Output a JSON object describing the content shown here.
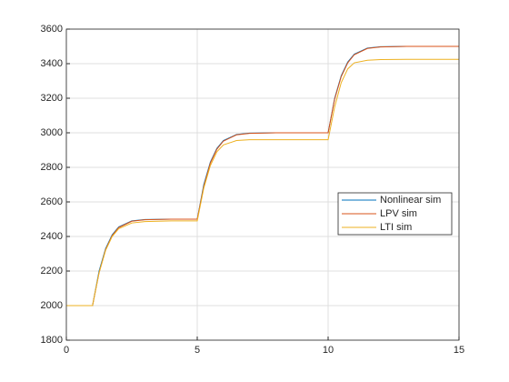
{
  "chart_data": {
    "type": "line",
    "x": [
      0,
      1,
      1.25,
      1.5,
      1.75,
      2,
      2.5,
      3,
      4,
      5,
      5.25,
      5.5,
      5.75,
      6,
      6.5,
      7,
      8,
      10,
      10.25,
      10.5,
      10.75,
      11,
      11.5,
      12,
      13,
      15
    ],
    "series": [
      {
        "name": "Nonlinear sim",
        "color": "#0072bd",
        "values": [
          2000,
          2000,
          2200,
          2330,
          2410,
          2455,
          2490,
          2498,
          2500,
          2500,
          2700,
          2830,
          2910,
          2955,
          2990,
          2998,
          3000,
          3000,
          3200,
          3330,
          3410,
          3455,
          3490,
          3498,
          3500,
          3500
        ]
      },
      {
        "name": "LPV sim",
        "color": "#d95319",
        "values": [
          2000,
          2000,
          2190,
          2325,
          2405,
          2452,
          2488,
          2497,
          2500,
          2500,
          2690,
          2825,
          2905,
          2952,
          2988,
          2997,
          3000,
          3000,
          3195,
          3325,
          3405,
          3452,
          3488,
          3497,
          3500,
          3500
        ]
      },
      {
        "name": "LTI sim",
        "color": "#edb120",
        "values": [
          2000,
          2000,
          2190,
          2320,
          2400,
          2445,
          2478,
          2486,
          2490,
          2490,
          2680,
          2810,
          2890,
          2930,
          2955,
          2960,
          2960,
          2960,
          3150,
          3290,
          3370,
          3405,
          3420,
          3424,
          3425,
          3425
        ]
      }
    ],
    "xlim": [
      0,
      15
    ],
    "xticks": [
      0,
      5,
      10,
      15
    ],
    "ylim": [
      1800,
      3600
    ],
    "yticks": [
      1800,
      2000,
      2200,
      2400,
      2600,
      2800,
      3000,
      3200,
      3400,
      3600
    ],
    "grid": true,
    "legend": "east"
  }
}
